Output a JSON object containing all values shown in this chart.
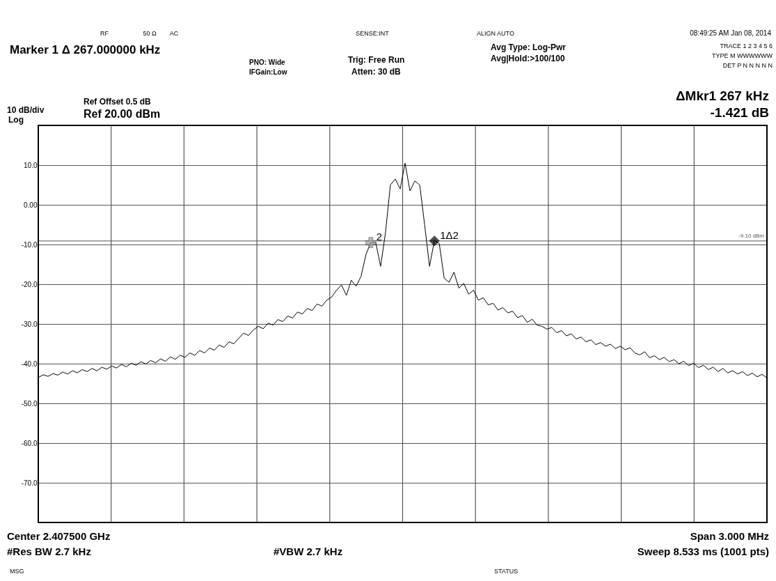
{
  "chart_data": {
    "type": "line",
    "categories": [
      null,
      null,
      null,
      null,
      null,
      null,
      null,
      null,
      null,
      null,
      null,
      null,
      null,
      null,
      null,
      null,
      null,
      null,
      null,
      null,
      null,
      null,
      null,
      null,
      null,
      null,
      null,
      null,
      null,
      null,
      null,
      null,
      null,
      null,
      null,
      null,
      null,
      null,
      null,
      null,
      null,
      null,
      null,
      null,
      null,
      null,
      null,
      null,
      null,
      null,
      null,
      null,
      null,
      null,
      null,
      null,
      null,
      null,
      null,
      null,
      null,
      null,
      null,
      null,
      null,
      null,
      null,
      null,
      null,
      null,
      null,
      null,
      null,
      null,
      null,
      null,
      null,
      null,
      null,
      null,
      null,
      null,
      null,
      null,
      null,
      null,
      null,
      null,
      null,
      null,
      null,
      null,
      null,
      null,
      null,
      null,
      null,
      null,
      null,
      null,
      null,
      null,
      null,
      null,
      null,
      null,
      null,
      null,
      null,
      null,
      null,
      null,
      null,
      null,
      null,
      null,
      null,
      null,
      null,
      null,
      null,
      null,
      null,
      null,
      null,
      null,
      null,
      null,
      null,
      null,
      null,
      null,
      null,
      null,
      null,
      null,
      null,
      null,
      null,
      null,
      null,
      null,
      null,
      null,
      null,
      null,
      null,
      null,
      null,
      null
    ],
    "series": [
      {
        "color": "#000000",
        "values": [
          -43.5,
          -42.8,
          -43.2,
          -42.5,
          -42.9,
          -42.1,
          -42.6,
          -41.8,
          -42.3,
          -41.5,
          -42.0,
          -41.2,
          -41.8,
          -40.9,
          -41.4,
          -40.6,
          -41.1,
          -40.2,
          -40.8,
          -39.9,
          -40.4,
          -39.5,
          -40.1,
          -39.2,
          -39.8,
          -38.8,
          -39.4,
          -38.3,
          -38.9,
          -37.9,
          -38.4,
          -37.3,
          -37.9,
          -36.7,
          -37.3,
          -36.1,
          -36.6,
          -35.3,
          -35.9,
          -34.5,
          -35.0,
          -33.6,
          -32.3,
          -32.9,
          -31.5,
          -30.6,
          -31.2,
          -29.8,
          -30.3,
          -28.9,
          -29.4,
          -28.0,
          -28.5,
          -27.0,
          -27.5,
          -26.1,
          -26.6,
          -25.0,
          -25.5,
          -24.0,
          -23.2,
          -21.5,
          -20.2,
          -22.8,
          -19.0,
          -20.5,
          -18.0,
          -12.5,
          -9.5,
          -9.5,
          -15.5,
          -7.0,
          5.0,
          6.5,
          4.0,
          10.5,
          3.5,
          6.0,
          5.0,
          -5.0,
          -15.5,
          -9.0,
          -9.8,
          -18.5,
          -19.5,
          -17.0,
          -21.0,
          -19.8,
          -22.5,
          -21.5,
          -24.0,
          -23.4,
          -25.2,
          -24.8,
          -26.5,
          -25.9,
          -27.2,
          -26.8,
          -28.4,
          -27.9,
          -29.6,
          -28.8,
          -30.3,
          -30.6,
          -31.3,
          -30.9,
          -32.2,
          -31.7,
          -33.0,
          -32.5,
          -33.8,
          -33.3,
          -34.5,
          -34.0,
          -35.2,
          -34.7,
          -35.6,
          -35.1,
          -36.2,
          -35.6,
          -36.5,
          -36.0,
          -37.3,
          -37.8,
          -37.0,
          -38.5,
          -38.0,
          -39.0,
          -38.4,
          -39.5,
          -39.0,
          -40.0,
          -39.4,
          -40.5,
          -39.9,
          -41.0,
          -40.4,
          -41.5,
          -40.9,
          -42.0,
          -41.2,
          -42.3,
          -41.8,
          -42.6,
          -42.0,
          -43.0,
          -42.4,
          -43.3,
          -42.7,
          -43.6
        ]
      },
      {
        "type": "scatter",
        "name": "2",
        "color": "#999999",
        "marker": "cross",
        "values": [
          null,
          null,
          null,
          null,
          null,
          null,
          null,
          null,
          null,
          null,
          null,
          null,
          null,
          null,
          null,
          null,
          null,
          null,
          null,
          null,
          null,
          null,
          null,
          null,
          null,
          null,
          null,
          null,
          null,
          null,
          null,
          null,
          null,
          null,
          null,
          null,
          null,
          null,
          null,
          null,
          null,
          null,
          null,
          null,
          null,
          null,
          null,
          null,
          null,
          null,
          null,
          null,
          null,
          null,
          null,
          null,
          null,
          null,
          null,
          null,
          null,
          null,
          null,
          null,
          null,
          null,
          null,
          null,
          -9.5,
          null,
          null,
          null,
          null,
          null,
          null,
          null,
          null,
          null,
          null,
          null,
          null,
          null,
          null,
          null,
          null,
          null,
          null,
          null,
          null,
          null,
          null,
          null,
          null,
          null,
          null,
          null,
          null,
          null,
          null,
          null,
          null,
          null,
          null,
          null,
          null,
          null,
          null,
          null,
          null,
          null,
          null,
          null,
          null,
          null,
          null,
          null,
          null,
          null,
          null,
          null,
          null,
          null,
          null,
          null,
          null,
          null,
          null,
          null,
          null,
          null,
          null,
          null,
          null,
          null,
          null,
          null,
          null,
          null,
          null,
          null,
          null,
          null,
          null,
          null,
          null,
          null,
          null,
          null,
          null,
          null
        ]
      },
      {
        "type": "scatter",
        "name": "1Δ2",
        "color": "#000000",
        "marker": "diamond",
        "values": [
          null,
          null,
          null,
          null,
          null,
          null,
          null,
          null,
          null,
          null,
          null,
          null,
          null,
          null,
          null,
          null,
          null,
          null,
          null,
          null,
          null,
          null,
          null,
          null,
          null,
          null,
          null,
          null,
          null,
          null,
          null,
          null,
          null,
          null,
          null,
          null,
          null,
          null,
          null,
          null,
          null,
          null,
          null,
          null,
          null,
          null,
          null,
          null,
          null,
          null,
          null,
          null,
          null,
          null,
          null,
          null,
          null,
          null,
          null,
          null,
          null,
          null,
          null,
          null,
          null,
          null,
          null,
          null,
          null,
          null,
          null,
          null,
          null,
          null,
          null,
          null,
          null,
          null,
          null,
          null,
          null,
          -9.1,
          null,
          null,
          null,
          null,
          null,
          null,
          null,
          null,
          null,
          null,
          null,
          null,
          null,
          null,
          null,
          null,
          null,
          null,
          null,
          null,
          null,
          null,
          null,
          null,
          null,
          null,
          null,
          null,
          null,
          null,
          null,
          null,
          null,
          null,
          null,
          null,
          null,
          null,
          null,
          null,
          null,
          null,
          null,
          null,
          null,
          null,
          null,
          null,
          null,
          null,
          null,
          null,
          null,
          null,
          null,
          null,
          null,
          null,
          null,
          null,
          null,
          null,
          null,
          null,
          null,
          null,
          null,
          null
        ]
      }
    ],
    "ylim": [
      -80,
      20
    ],
    "yticks": [
      {
        "value": 20,
        "label": null
      },
      {
        "value": 10,
        "label": "10.0"
      },
      {
        "value": 0,
        "label": "0.00"
      },
      {
        "value": -10,
        "label": "-10.0"
      },
      {
        "value": -20,
        "label": "-20.0"
      },
      {
        "value": -30,
        "label": "-30.0"
      },
      {
        "value": -40,
        "label": "-40.0"
      },
      {
        "value": -50,
        "label": "-50.0"
      },
      {
        "value": -60,
        "label": "-60.0"
      },
      {
        "value": -70,
        "label": "-70.0"
      },
      {
        "value": -80,
        "label": null
      }
    ],
    "grid": true,
    "tick_labels": "y",
    "line_style": "solid",
    "marker": "none",
    "ref_lines": [
      {
        "axis": "y",
        "value": -9.1,
        "label": "-9.10 dBm",
        "color": "#555555",
        "line_style": "solid"
      }
    ],
    "annotations": [
      "RF",
      "50 Ω",
      "AC",
      "SENSE:INT",
      "ALIGN AUTO",
      "08:49:25 AM Jan 08, 2014",
      "Marker 1 Δ 267.000000 kHz",
      "PNO: Wide",
      "IFGain:Low",
      "Trig: Free Run",
      "Atten: 30 dB",
      "Avg Type: Log-Pwr",
      "Avg|Hold:>100/100",
      "TRACE 1 2 3 4 5 6",
      "TYPE M WWWWWW",
      "DET P N N N N N",
      "Ref Offset 0.5 dB",
      "Ref 20.00 dBm",
      "10 dB/div",
      "Log",
      "ΔMkr1 267 kHz",
      "-1.421 dB",
      "Center 2.407500 GHz",
      "#Res BW 2.7 kHz",
      "#VBW 2.7 kHz",
      "Span 3.000 MHz",
      "Sweep  8.533 ms (1001 pts)",
      "MSG",
      "STATUS"
    ]
  }
}
